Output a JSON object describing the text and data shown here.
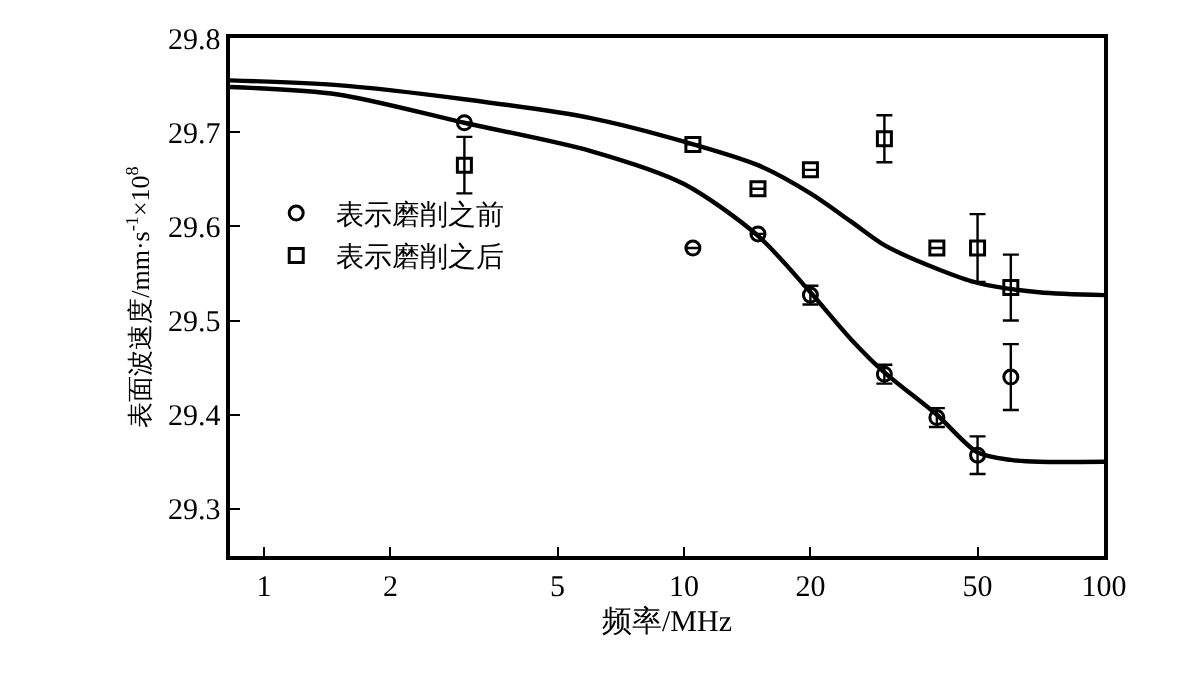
{
  "chart_data": {
    "type": "scatter",
    "xlabel": "频率/MHz",
    "ylabel": "表面波速度/mm·s$^{-1}$×10$^{8}$",
    "log": "x",
    "legend": "left",
    "xlim": [
      0.83,
      100
    ],
    "xticks": [
      1,
      2,
      5,
      10,
      20,
      50,
      100
    ],
    "ylim": [
      29.25,
      29.8
    ],
    "yticks": [
      29.3,
      29.4,
      29.5,
      29.6,
      29.7,
      29.8
    ],
    "series": [
      {
        "name": "表示磨削之前",
        "marker": "circle",
        "color": "#000000",
        "x": [
          3,
          10.5,
          15,
          20,
          30,
          40,
          50,
          60
        ],
        "values": [
          29.71,
          29.577,
          29.592,
          29.527,
          29.443,
          29.397,
          29.357,
          29.44
        ],
        "errors": [
          null,
          null,
          null,
          0.01,
          0.01,
          0.01,
          0.02,
          0.035
        ]
      },
      {
        "name": "表示磨削之后",
        "marker": "square",
        "color": "#000000",
        "x": [
          3,
          10.5,
          15,
          20,
          30,
          40,
          50,
          60
        ],
        "values": [
          29.665,
          29.687,
          29.64,
          29.66,
          29.693,
          29.577,
          29.577,
          29.535
        ],
        "errors": [
          0.03,
          null,
          null,
          null,
          0.025,
          null,
          0.036,
          0.035
        ]
      },
      {
        "type": "line",
        "line_style": "solid",
        "color": "#000000",
        "x": [
          0.83,
          1.5,
          3,
          6,
          10,
          15,
          20,
          25,
          30,
          40,
          50,
          70,
          100
        ],
        "values": [
          29.755,
          29.75,
          29.735,
          29.715,
          29.69,
          29.665,
          29.635,
          29.605,
          29.58,
          29.555,
          29.54,
          29.53,
          29.527
        ]
      },
      {
        "type": "line",
        "line_style": "solid",
        "color": "#000000",
        "x": [
          0.83,
          1.5,
          3,
          6,
          10,
          15,
          20,
          25,
          30,
          40,
          50,
          60,
          70,
          100
        ],
        "values": [
          29.748,
          29.74,
          29.71,
          29.68,
          29.645,
          29.59,
          29.53,
          29.48,
          29.445,
          29.4,
          29.36,
          29.352,
          29.35,
          29.35
        ]
      }
    ]
  }
}
